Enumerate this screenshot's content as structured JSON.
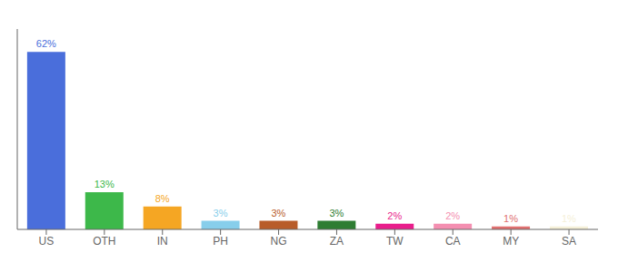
{
  "chart_data": {
    "type": "bar",
    "categories": [
      "US",
      "OTH",
      "IN",
      "PH",
      "NG",
      "ZA",
      "TW",
      "CA",
      "MY",
      "SA"
    ],
    "values": [
      62,
      13,
      8,
      3,
      3,
      3,
      2,
      2,
      1,
      1
    ],
    "value_labels": [
      "62%",
      "13%",
      "8%",
      "3%",
      "3%",
      "3%",
      "2%",
      "2%",
      "1%",
      "1%"
    ],
    "colors": [
      "#4a6edb",
      "#3db84a",
      "#f5a623",
      "#87ceeb",
      "#b85c2a",
      "#2e7d32",
      "#e91e8c",
      "#f48fb1",
      "#e07070",
      "#f5f0d8"
    ],
    "data_labels": true,
    "ylim": [
      0,
      70
    ],
    "tick_labels": "x"
  }
}
